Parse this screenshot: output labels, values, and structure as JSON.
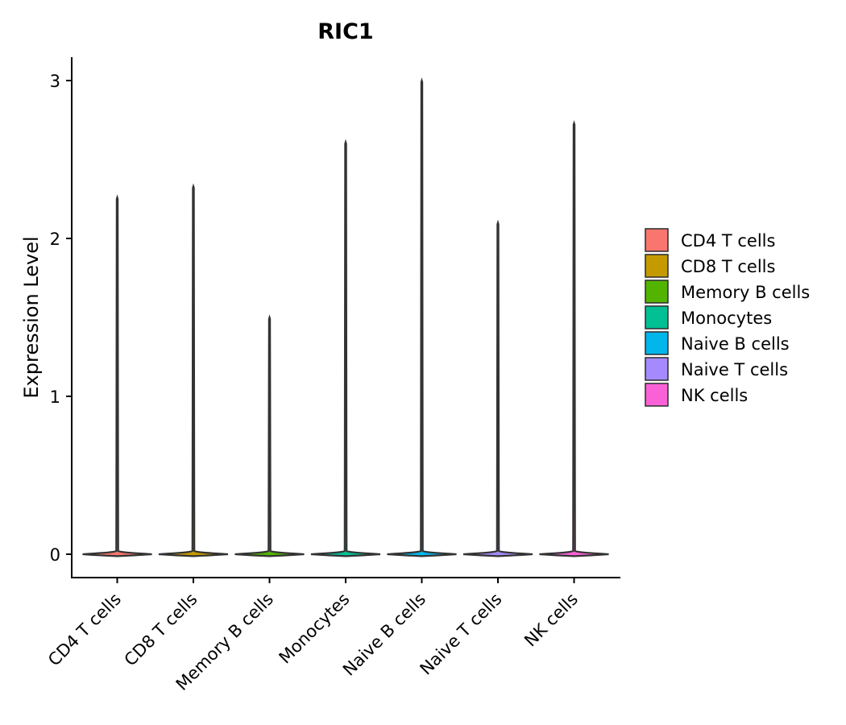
{
  "chart_data": {
    "type": "violin",
    "title": "RIC1",
    "xlabel": "",
    "ylabel": "Expression Level",
    "ylim": [
      -0.15,
      3.15
    ],
    "yticks": [
      0,
      1,
      2,
      3
    ],
    "ytick_labels": [
      "0",
      "1",
      "2",
      "3"
    ],
    "categories": [
      "CD4 T cells",
      "CD8 T cells",
      "Memory B cells",
      "Monocytes",
      "Naive B cells",
      "Naive T cells",
      "NK cells"
    ],
    "max_values": [
      2.26,
      2.33,
      1.5,
      2.61,
      3.0,
      2.1,
      2.73
    ],
    "min_values": [
      0,
      0,
      0,
      0,
      0,
      0,
      0
    ],
    "colors": [
      "#F8766D",
      "#C49A00",
      "#53B400",
      "#00C094",
      "#00B6EB",
      "#A58AFF",
      "#FB61D7"
    ],
    "legend": {
      "position": "right",
      "entries": [
        "CD4 T cells",
        "CD8 T cells",
        "Memory B cells",
        "Monocytes",
        "Naive B cells",
        "Naive T cells",
        "NK cells"
      ]
    }
  }
}
